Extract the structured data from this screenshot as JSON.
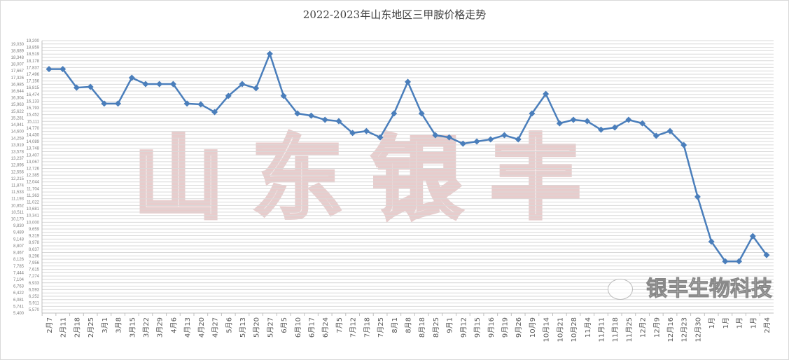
{
  "watermark": {
    "logo_text": "山东银丰",
    "brand_text": "银丰生物科技"
  },
  "chart_data": {
    "type": "line",
    "title": "2022-2023年山东地区三甲胺价格走势",
    "xlabel": "",
    "ylabel": "",
    "ylim": [
      5400,
      19200
    ],
    "grid": true,
    "legend": "none",
    "color": "#4a7ebb",
    "marker": "diamond",
    "yticks": [
      19200,
      19030,
      18859,
      18689,
      18519,
      18348,
      18178,
      18007,
      17837,
      17667,
      17496,
      17326,
      17156,
      16985,
      16815,
      16644,
      16474,
      16304,
      16133,
      15963,
      15793,
      15622,
      15452,
      15281,
      15111,
      14941,
      14770,
      14600,
      14430,
      14259,
      14089,
      13919,
      13748,
      13578,
      13407,
      13237,
      13067,
      12896,
      12726,
      12556,
      12385,
      12215,
      12044,
      11874,
      11704,
      11533,
      11363,
      11193,
      11022,
      10852,
      10681,
      10511,
      10341,
      10170,
      10000,
      9830,
      9659,
      9489,
      9319,
      9148,
      8978,
      8807,
      8637,
      8467,
      8296,
      8126,
      7956,
      7785,
      7615,
      7444,
      7274,
      7104,
      6933,
      6763,
      6593,
      6422,
      6252,
      6081,
      5911,
      5741,
      5570,
      5400
    ],
    "categories": [
      "2月7",
      "2月11",
      "2月18",
      "2月25",
      "3月1",
      "3月8",
      "3月15",
      "3月22",
      "3月29",
      "4月6",
      "4月13",
      "4月20",
      "4月27",
      "5月6",
      "5月13",
      "5月20",
      "5月27",
      "6月5",
      "6月10",
      "6月17",
      "6月24",
      "7月5",
      "7月12",
      "7月18",
      "7月25",
      "8月1",
      "8月8",
      "8月18",
      "8月25",
      "9月1",
      "9月12",
      "9月15",
      "9月16",
      "9月19",
      "9月26",
      "10月9",
      "10月14",
      "10月21",
      "10月28",
      "11月4",
      "11月11",
      "11月18",
      "11月25",
      "12月2",
      "12月9",
      "12月16",
      "12月23",
      "12月30",
      "1月",
      "1月",
      "1月",
      "1月",
      "2月4"
    ],
    "values": [
      17760,
      17760,
      16820,
      16860,
      16010,
      16010,
      17320,
      17000,
      17000,
      17000,
      16010,
      15970,
      15580,
      16400,
      17000,
      16790,
      18530,
      16400,
      15510,
      15400,
      15190,
      15120,
      14520,
      14620,
      14300,
      15510,
      17110,
      15510,
      14410,
      14300,
      13980,
      14090,
      14200,
      14410,
      14200,
      15510,
      16500,
      15010,
      15190,
      15120,
      14690,
      14800,
      15190,
      15010,
      14380,
      14620,
      13910,
      11290,
      9020,
      8020,
      8020,
      9300,
      8340
    ]
  }
}
